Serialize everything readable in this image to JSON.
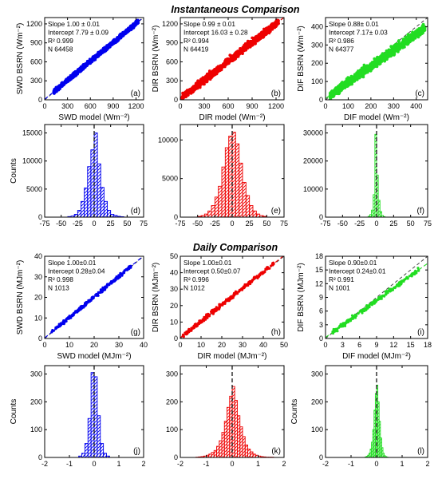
{
  "section_titles": {
    "instantaneous": "Instantaneous Comparison",
    "daily": "Daily Comparison"
  },
  "colors": {
    "blue": "#0000ee",
    "red": "#ee0000",
    "green": "#22dd22",
    "frame": "#000000"
  },
  "chart_data": [
    {
      "id": "a",
      "type": "scatter",
      "color": "blue",
      "panel_label": "(a)",
      "xlabel": "SWD model (Wm⁻²)",
      "ylabel": "SWD BSRN (Wm⁻²)",
      "xlim": [
        0,
        1300
      ],
      "ylim": [
        0,
        1300
      ],
      "xticks": [
        "0",
        "300",
        "600",
        "900",
        "1200"
      ],
      "xtick_vals": [
        0,
        300,
        600,
        900,
        1200
      ],
      "yticks": [
        "0",
        "300",
        "600",
        "900",
        "1200"
      ],
      "ytick_vals": [
        0,
        300,
        600,
        900,
        1200
      ],
      "stats": [
        "Slope 1.00 ± 0.01",
        "Intercept 7.79 ± 0.09",
        "R² 0.999",
        "N 64458"
      ],
      "slope": 1.0,
      "intercept": 7.79,
      "data_range": [
        120,
        1230
      ],
      "spread": 30
    },
    {
      "id": "b",
      "type": "scatter",
      "color": "red",
      "panel_label": "(b)",
      "xlabel": "DIR model (Wm⁻²)",
      "ylabel": "DIR BSRN (Wm⁻²)",
      "xlim": [
        0,
        1300
      ],
      "ylim": [
        0,
        1300
      ],
      "xticks": [
        "0",
        "300",
        "600",
        "900",
        "1200"
      ],
      "xtick_vals": [
        0,
        300,
        600,
        900,
        1200
      ],
      "yticks": [
        "0",
        "300",
        "600",
        "900",
        "1200"
      ],
      "ytick_vals": [
        0,
        300,
        600,
        900,
        1200
      ],
      "stats": [
        "Slope 0.99 ± 0.01",
        "Intercept 16.03 ± 0.28",
        "R² 0.994",
        "N 64419"
      ],
      "slope": 0.99,
      "intercept": 16.03,
      "data_range": [
        20,
        1230
      ],
      "spread": 50
    },
    {
      "id": "c",
      "type": "scatter",
      "color": "green",
      "panel_label": "(c)",
      "xlabel": "DIF model (Wm⁻²)",
      "ylabel": "DIF BSRN (Wm⁻²)",
      "xlim": [
        0,
        450
      ],
      "ylim": [
        0,
        450
      ],
      "xticks": [
        "0",
        "100",
        "200",
        "300",
        "400"
      ],
      "xtick_vals": [
        0,
        100,
        200,
        300,
        400
      ],
      "yticks": [
        "0",
        "100",
        "200",
        "300",
        "400"
      ],
      "ytick_vals": [
        0,
        100,
        200,
        300,
        400
      ],
      "stats": [
        "Slope  0.88± 0.01",
        "Intercept  7.17± 0.03",
        "R² 0.986",
        "N 64377"
      ],
      "slope": 0.88,
      "intercept": 7.17,
      "data_range": [
        20,
        440
      ],
      "spread": 22
    },
    {
      "id": "d",
      "type": "bar",
      "color": "blue",
      "panel_label": "(d)",
      "xlabel": "",
      "ylabel": "Counts",
      "xlim": [
        -75,
        75
      ],
      "ylim": [
        0,
        16500
      ],
      "xticks": [
        "-75",
        "-50",
        "-25",
        "0",
        "25",
        "50",
        "75"
      ],
      "xtick_vals": [
        -75,
        -50,
        -25,
        0,
        25,
        50,
        75
      ],
      "yticks": [
        "0",
        "5000",
        "10000",
        "15000"
      ],
      "ytick_vals": [
        0,
        5000,
        10000,
        15000
      ],
      "bin_width": 5,
      "bin_starts": [
        -40,
        -35,
        -30,
        -25,
        -20,
        -15,
        -10,
        -5,
        0,
        5,
        10,
        15,
        20,
        25,
        30,
        35,
        40
      ],
      "values": [
        100,
        200,
        500,
        1200,
        2800,
        5200,
        9000,
        12000,
        15000,
        9500,
        5300,
        2800,
        1200,
        500,
        300,
        150,
        80
      ]
    },
    {
      "id": "e",
      "type": "bar",
      "color": "red",
      "panel_label": "(e)",
      "xlabel": "",
      "ylabel": "",
      "xlim": [
        -75,
        75
      ],
      "ylim": [
        0,
        12000
      ],
      "xticks": [
        "-75",
        "-50",
        "-25",
        "0",
        "25",
        "50",
        "75"
      ],
      "xtick_vals": [
        -75,
        -50,
        -25,
        0,
        25,
        50,
        75
      ],
      "yticks": [
        "0",
        "5000",
        "10000"
      ],
      "ytick_vals": [
        0,
        5000,
        10000
      ],
      "bin_width": 5,
      "bin_starts": [
        -50,
        -45,
        -40,
        -35,
        -30,
        -25,
        -20,
        -15,
        -10,
        -5,
        0,
        5,
        10,
        15,
        20,
        25,
        30,
        35,
        40,
        45
      ],
      "values": [
        100,
        200,
        400,
        800,
        1500,
        2600,
        4000,
        6500,
        9000,
        10500,
        11000,
        9500,
        7000,
        4500,
        2800,
        1500,
        800,
        400,
        200,
        100
      ]
    },
    {
      "id": "f",
      "type": "bar",
      "color": "green",
      "panel_label": "(f)",
      "xlabel": "",
      "ylabel": "",
      "xlim": [
        -75,
        75
      ],
      "ylim": [
        0,
        33000
      ],
      "xticks": [
        "-75",
        "-50",
        "-25",
        "0",
        "25",
        "50",
        "75"
      ],
      "xtick_vals": [
        -75,
        -50,
        -25,
        0,
        25,
        50,
        75
      ],
      "yticks": [
        "0",
        "10000",
        "20000",
        "30000"
      ],
      "ytick_vals": [
        0,
        10000,
        20000,
        30000
      ],
      "bin_width": 2.5,
      "bin_starts": [
        -12.5,
        -10,
        -7.5,
        -5,
        -2.5,
        0,
        2.5,
        5,
        7.5,
        10
      ],
      "values": [
        300,
        900,
        2500,
        8000,
        29500,
        15000,
        6000,
        2000,
        600,
        200
      ]
    },
    {
      "id": "g",
      "type": "scatter",
      "color": "blue",
      "panel_label": "(g)",
      "xlabel": "SWD model (MJm⁻²)",
      "ylabel": "SWD BSRN (MJm⁻²)",
      "xlim": [
        0,
        40
      ],
      "ylim": [
        0,
        40
      ],
      "xticks": [
        "0",
        "10",
        "20",
        "30",
        "40"
      ],
      "xtick_vals": [
        0,
        10,
        20,
        30,
        40
      ],
      "yticks": [
        "0",
        "10",
        "20",
        "30",
        "40"
      ],
      "ytick_vals": [
        0,
        10,
        20,
        30,
        40
      ],
      "stats": [
        "Slope 1.00±0.01",
        "Intercept 0.28±0.04",
        "R² 0.998",
        "N 1013"
      ],
      "slope": 1.0,
      "intercept": 0.28,
      "data_range": [
        2,
        35
      ],
      "spread": 0.8
    },
    {
      "id": "h",
      "type": "scatter",
      "color": "red",
      "panel_label": "(h)",
      "xlabel": "DIR model (MJm⁻²)",
      "ylabel": "DIR BSRN (MJm⁻²)",
      "xlim": [
        0,
        50
      ],
      "ylim": [
        0,
        50
      ],
      "xticks": [
        "0",
        "10",
        "20",
        "30",
        "40",
        "50"
      ],
      "xtick_vals": [
        0,
        10,
        20,
        30,
        40,
        50
      ],
      "yticks": [
        "0",
        "10",
        "20",
        "30",
        "40",
        "50"
      ],
      "ytick_vals": [
        0,
        10,
        20,
        30,
        40,
        50
      ],
      "stats": [
        "Slope 1.00±0.01",
        "Intercept 0.50±0.07",
        "R² 0.996",
        "N 1012"
      ],
      "slope": 1.0,
      "intercept": 0.5,
      "data_range": [
        1,
        45
      ],
      "spread": 1.2
    },
    {
      "id": "i",
      "type": "scatter",
      "color": "green",
      "panel_label": "(i)",
      "xlabel": "DIF model (MJm⁻²)",
      "ylabel": "DIF BSRN (MJm⁻²)",
      "xlim": [
        0,
        18
      ],
      "ylim": [
        0,
        18
      ],
      "xticks": [
        "0",
        "3",
        "6",
        "9",
        "12",
        "15",
        "18"
      ],
      "xtick_vals": [
        0,
        3,
        6,
        9,
        12,
        15,
        18
      ],
      "yticks": [
        "0",
        "3",
        "6",
        "9",
        "12",
        "15",
        "18"
      ],
      "ytick_vals": [
        0,
        3,
        6,
        9,
        12,
        15,
        18
      ],
      "stats": [
        "Slope 0.90±0.01",
        "Intercept 0.24±0.01",
        "R² 0.991",
        "N 1001"
      ],
      "slope": 0.9,
      "intercept": 0.24,
      "data_range": [
        1,
        16.5
      ],
      "spread": 0.45
    },
    {
      "id": "j",
      "type": "bar",
      "color": "blue",
      "panel_label": "(j)",
      "xlabel": "",
      "ylabel": "Counts",
      "xlim": [
        -2,
        2
      ],
      "ylim": [
        0,
        330
      ],
      "xticks": [
        "-2",
        "-1",
        "0",
        "1",
        "2"
      ],
      "xtick_vals": [
        -2,
        -1,
        0,
        1,
        2
      ],
      "yticks": [
        "0",
        "100",
        "200",
        "300"
      ],
      "ytick_vals": [
        0,
        100,
        200,
        300
      ],
      "bin_width": 0.125,
      "bin_starts": [
        -0.625,
        -0.5,
        -0.375,
        -0.25,
        -0.125,
        0,
        0.125,
        0.25,
        0.375,
        0.5
      ],
      "values": [
        5,
        15,
        50,
        140,
        305,
        290,
        150,
        50,
        15,
        5
      ]
    },
    {
      "id": "k",
      "type": "bar",
      "color": "red",
      "panel_label": "(k)",
      "xlabel": "",
      "ylabel": "",
      "xlim": [
        -2,
        2
      ],
      "ylim": [
        0,
        330
      ],
      "xticks": [
        "-2",
        "-1",
        "0",
        "1",
        "2"
      ],
      "xtick_vals": [
        -2,
        -1,
        0,
        1,
        2
      ],
      "yticks": [
        "0",
        "100",
        "200",
        "300"
      ],
      "ytick_vals": [
        0,
        100,
        200,
        300
      ],
      "bin_width": 0.1,
      "bin_starts": [
        -1.4,
        -1.3,
        -1.2,
        -1.1,
        -1.0,
        -0.9,
        -0.8,
        -0.7,
        -0.6,
        -0.5,
        -0.4,
        -0.3,
        -0.2,
        -0.1,
        0,
        0.1,
        0.2,
        0.3,
        0.4,
        0.5,
        0.6,
        0.7,
        0.8,
        0.9,
        1.0,
        1.1,
        1.2,
        1.3,
        1.4,
        1.5
      ],
      "values": [
        1,
        2,
        3,
        5,
        8,
        12,
        18,
        25,
        40,
        60,
        90,
        130,
        180,
        220,
        255,
        205,
        150,
        110,
        75,
        45,
        30,
        20,
        12,
        8,
        5,
        3,
        2,
        1,
        1,
        1
      ]
    },
    {
      "id": "l",
      "type": "bar",
      "color": "green",
      "panel_label": "(l)",
      "xlabel": "",
      "ylabel": "Counts",
      "xlim": [
        -2,
        2
      ],
      "ylim": [
        0,
        330
      ],
      "xticks": [
        "-2",
        "-1",
        "0",
        "1",
        "2"
      ],
      "xtick_vals": [
        -2,
        -1,
        0,
        1,
        2
      ],
      "yticks": [
        "0",
        "100",
        "200",
        "300"
      ],
      "ytick_vals": [
        0,
        100,
        200,
        300
      ],
      "bin_width": 0.05,
      "bin_starts": [
        -0.45,
        -0.4,
        -0.35,
        -0.3,
        -0.25,
        -0.2,
        -0.15,
        -0.1,
        -0.05,
        0,
        0.05,
        0.1,
        0.15,
        0.2,
        0.25,
        0.3,
        0.35,
        0.4
      ],
      "values": [
        2,
        4,
        8,
        15,
        30,
        55,
        100,
        170,
        230,
        260,
        200,
        130,
        70,
        35,
        15,
        6,
        3,
        1
      ]
    }
  ]
}
